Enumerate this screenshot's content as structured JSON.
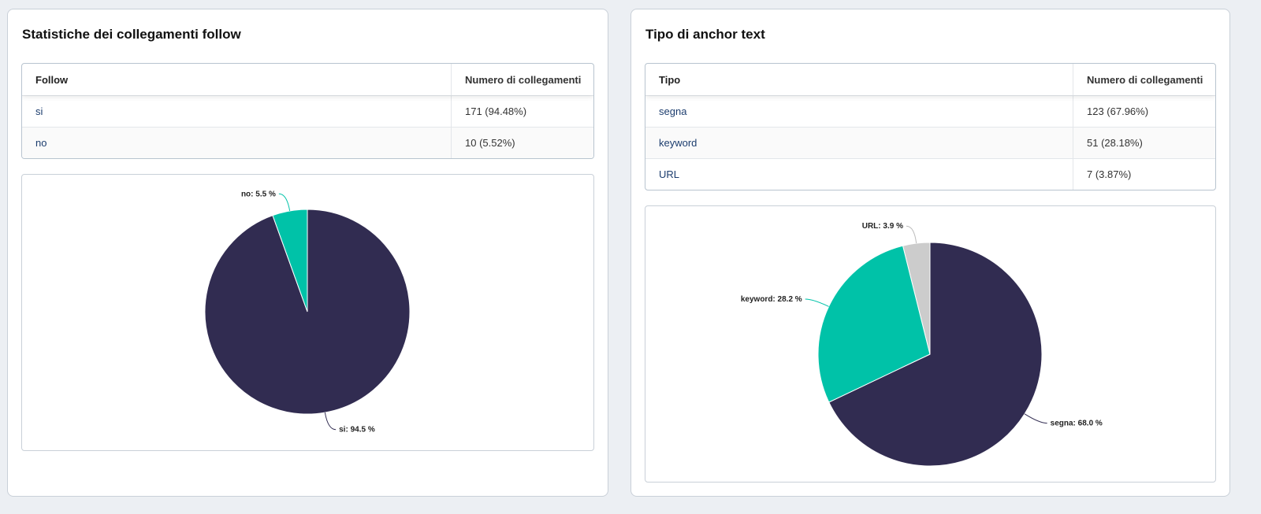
{
  "left": {
    "title": "Statistiche dei collegamenti follow",
    "columns": [
      "Follow",
      "Numero di collegamenti"
    ],
    "rows": [
      {
        "label": "si",
        "value": "171 (94.48%)"
      },
      {
        "label": "no",
        "value": "10 (5.52%)"
      }
    ]
  },
  "right": {
    "title": "Tipo di anchor text",
    "columns": [
      "Tipo",
      "Numero di collegamenti"
    ],
    "rows": [
      {
        "label": "segna",
        "value": "123 (67.96%)"
      },
      {
        "label": "keyword",
        "value": "51 (28.18%)"
      },
      {
        "label": "URL",
        "value": "7 (3.87%)"
      }
    ]
  },
  "chart_data": [
    {
      "type": "pie",
      "slices": [
        {
          "label": "si",
          "value": 94.5,
          "text": "si: 94.5 %",
          "color": "#312c51"
        },
        {
          "label": "no",
          "value": 5.5,
          "text": "no: 5.5 %",
          "color": "#00c2a8"
        }
      ]
    },
    {
      "type": "pie",
      "slices": [
        {
          "label": "segna",
          "value": 68.0,
          "text": "segna: 68.0 %",
          "color": "#312c51"
        },
        {
          "label": "keyword",
          "value": 28.2,
          "text": "keyword: 28.2 %",
          "color": "#00c2a8"
        },
        {
          "label": "URL",
          "value": 3.9,
          "text": "URL: 3.9 %",
          "color": "#cccccc"
        }
      ]
    }
  ]
}
